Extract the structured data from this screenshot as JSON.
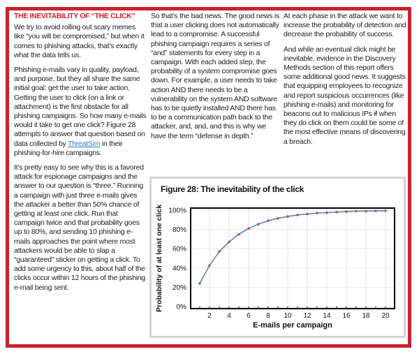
{
  "page": {
    "border_color": "#c8222b",
    "background": "#ffffff"
  },
  "article": {
    "heading": "THE INEVITABILITY OF “THE CLICK”",
    "col1": {
      "p1": "We try to avoid rolling out scary memes like “you will be compromised,” but when it comes to phishing attacks, that’s exactly what the data tells us.",
      "p2_before_link": "Phishing e-mails vary in quality, payload, and purpose, but they all share the same initial goal: get the user to take action. Getting the user to click (on a link or attachment) is the first obstacle for all phishing campaigns. So how many e-mails would it take to get one click? Figure 28 attempts to answer that question based on data collected by ",
      "p2_link": "ThreatSim",
      "p2_after_link": " in their phishing-for-hire campaigns.",
      "p3": "It’s pretty easy to see why this is a favored attack for espionage campaigns and the answer to our question is “three.” Running a campaign with just three e-mails gives the attacker a better than 50% chance of getting at least one click. Run that campaign twice and that probability goes up to 80%, and sending 10 phishing e-mails approaches the point where most attackers would be able to slap a “guaranteed” sticker on getting a click. To add some urgency to this, about half of the clicks occur within 12 hours of the phishing e-mail being sent."
    },
    "col2": {
      "p1": "So that’s the bad news. The good news is that a user clicking does not automatically lead to a compromise. A successful phishing campaign requires a series of “and” statements for every step in a campaign. With each added step, the probability of a system compromise goes down. For example, a user needs to take action AND there needs to be a vulnerability on the system AND software has to be quietly installed AND there has to be a communication path back to the attacker, and, and, and this is why we have the term “defense in depth.”"
    },
    "col3": {
      "p1": "At each phase in the attack we want to increase the probability of detection and decrease the probability of success.",
      "p2_before_strike": "And while an eventual click might be inevitable, evidence in the Discovery Methods section of this report offers some additional good news. It suggests that equipping employees to recognize and report suspicious occurrences (like phishing e-mails) and monitoring for beacons out to malicious IPs ",
      "p2_strike": "if",
      "p2_after_strike": " when they do click on them could be some of the most effective means of discovering a breach."
    }
  },
  "figure": {
    "title": "Figure 28: The inevitability of the click"
  },
  "chart_data": {
    "type": "line",
    "title": "Figure 28: The inevitability of the click",
    "xlabel": "E-mails per campaign",
    "ylabel": "Probability of at least one click",
    "x": [
      1,
      2,
      3,
      4,
      5,
      6,
      7,
      8,
      9,
      10,
      11,
      12,
      13,
      14,
      15,
      16,
      17,
      18,
      19,
      20
    ],
    "values": [
      24,
      42.5,
      57,
      67,
      75,
      81,
      85.5,
      89,
      91.5,
      93.5,
      95,
      96,
      97,
      97.5,
      98,
      98.5,
      99,
      99,
      99.2,
      99.4
    ],
    "xlim": [
      1,
      20
    ],
    "ylim": [
      0,
      100
    ],
    "x_ticks": [
      2,
      4,
      6,
      8,
      10,
      12,
      14,
      16,
      18,
      20
    ],
    "y_tick_values": [
      0,
      20,
      40,
      60,
      80,
      100
    ],
    "y_ticks": [
      "0%",
      "20%",
      "40%",
      "60%",
      "80%",
      "100%"
    ],
    "grid": true,
    "legend": "none",
    "line_color": "#4f86c0",
    "marker_color": "#c0504d"
  }
}
